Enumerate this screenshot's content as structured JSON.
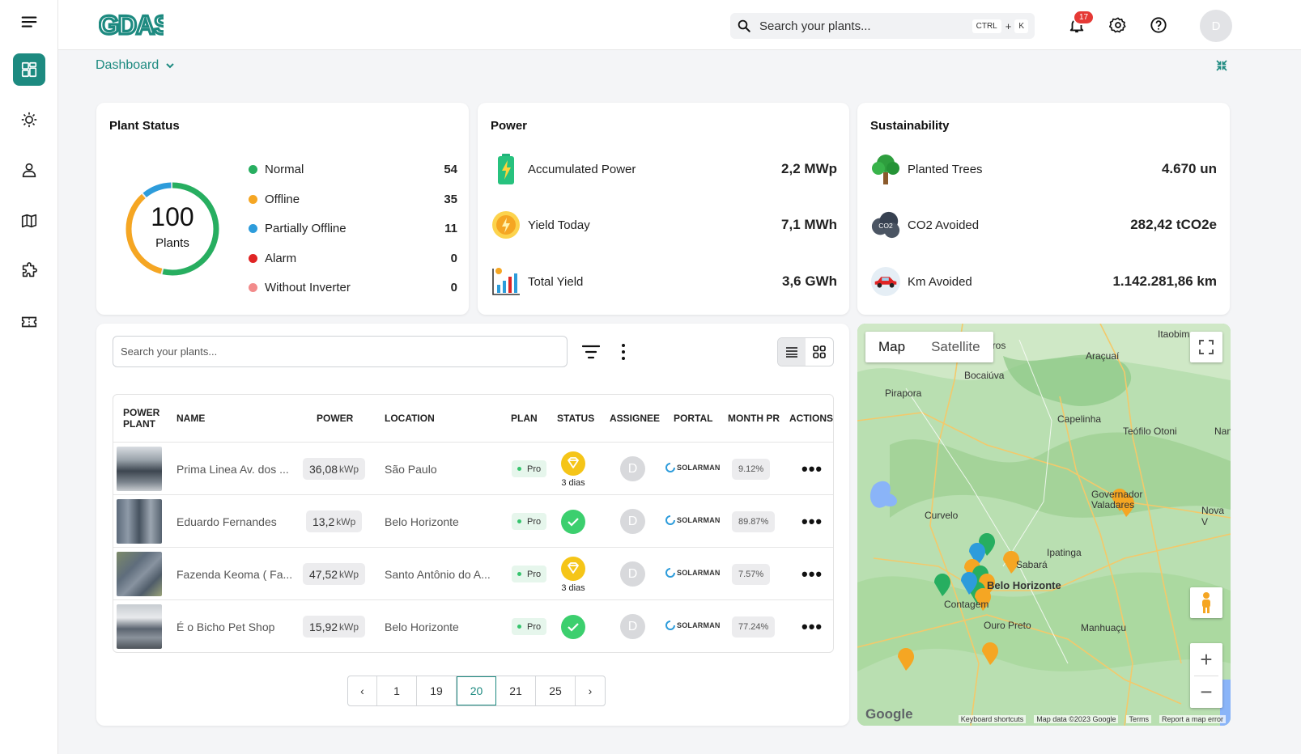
{
  "app": {
    "logo": "GDASH",
    "breadcrumb": "Dashboard"
  },
  "header": {
    "search_placeholder": "Search your plants...",
    "shortcut_ctrl": "CTRL",
    "shortcut_plus": "+",
    "shortcut_key": "K",
    "notification_count": "17",
    "avatar_initial": "D"
  },
  "plant_status": {
    "title": "Plant Status",
    "total": "100",
    "total_label": "Plants",
    "items": [
      {
        "label": "Normal",
        "value": "54",
        "color": "#27ae60"
      },
      {
        "label": "Offline",
        "value": "35",
        "color": "#f5a623"
      },
      {
        "label": "Partially Offline",
        "value": "11",
        "color": "#2d9cdb"
      },
      {
        "label": "Alarm",
        "value": "0",
        "color": "#e02424"
      },
      {
        "label": "Without Inverter",
        "value": "0",
        "color": "#f28b8b"
      }
    ]
  },
  "power": {
    "title": "Power",
    "items": [
      {
        "label": "Accumulated Power",
        "value": "2,2 MWp"
      },
      {
        "label": "Yield Today",
        "value": "7,1 MWh"
      },
      {
        "label": "Total Yield",
        "value": "3,6 GWh"
      }
    ]
  },
  "sustainability": {
    "title": "Sustainability",
    "co2_icon_text": "CO2",
    "items": [
      {
        "label": "Planted Trees",
        "value": "4.670 un"
      },
      {
        "label": "CO2 Avoided",
        "value": "282,42 tCO2e"
      },
      {
        "label": "Km Avoided",
        "value": "1.142.281,86 km"
      }
    ]
  },
  "table": {
    "search_placeholder": "Search your plants...",
    "headers": {
      "plant_line1": "POWER",
      "plant_line2": "PLANT",
      "name": "NAME",
      "power": "POWER",
      "location": "LOCATION",
      "plan": "PLAN",
      "status": "STATUS",
      "assignee": "ASSIGNEE",
      "portal": "PORTAL",
      "month_pr": "MONTH PR",
      "actions": "ACTIONS"
    },
    "rows": [
      {
        "name": "Prima Linea Av. dos ...",
        "power": "36,08",
        "unit": "kWp",
        "location": "São Paulo",
        "plan": "Pro",
        "status_label": "3 dias",
        "assignee": "D",
        "portal": "SOLARMAN",
        "month_pr": "9.12%",
        "actions": "•••"
      },
      {
        "name": "Eduardo Fernandes",
        "power": "13,2",
        "unit": "kWp",
        "location": "Belo Horizonte",
        "plan": "Pro",
        "status_label": "",
        "assignee": "D",
        "portal": "SOLARMAN",
        "month_pr": "89.87%",
        "actions": "•••"
      },
      {
        "name": "Fazenda Keoma ( Fa...",
        "power": "47,52",
        "unit": "kWp",
        "location": "Santo Antônio do A...",
        "plan": "Pro",
        "status_label": "3 dias",
        "assignee": "D",
        "portal": "SOLARMAN",
        "month_pr": "7.57%",
        "actions": "•••"
      },
      {
        "name": "É o Bicho Pet Shop",
        "power": "15,92",
        "unit": "kWp",
        "location": "Belo Horizonte",
        "plan": "Pro",
        "status_label": "",
        "assignee": "D",
        "portal": "SOLARMAN",
        "month_pr": "77.24%",
        "actions": "•••"
      }
    ],
    "pagination": {
      "prev": "‹",
      "pages": [
        "1",
        "19",
        "20",
        "21",
        "25"
      ],
      "current": "20",
      "next": "›"
    }
  },
  "map": {
    "tabs": [
      "Map",
      "Satellite"
    ],
    "active_tab": "Map",
    "zoom_in": "+",
    "zoom_out": "−",
    "places": [
      "Itaobim",
      "Araçuaí",
      "Bocaiúva",
      "Pirapora",
      "Capelinha",
      "Teófilo Otoni",
      "Curvelo",
      "Governador Valadares",
      "Ipatinga",
      "Nova V",
      "Contagem",
      "Belo Horizonte",
      "Ouro Preto",
      "Manhuaçu",
      "Sabará",
      "Nan",
      "aros"
    ],
    "brand": "Google",
    "footer": [
      "Keyboard shortcuts",
      "Map data ©2023 Google",
      "Terms",
      "Report a map error"
    ]
  }
}
